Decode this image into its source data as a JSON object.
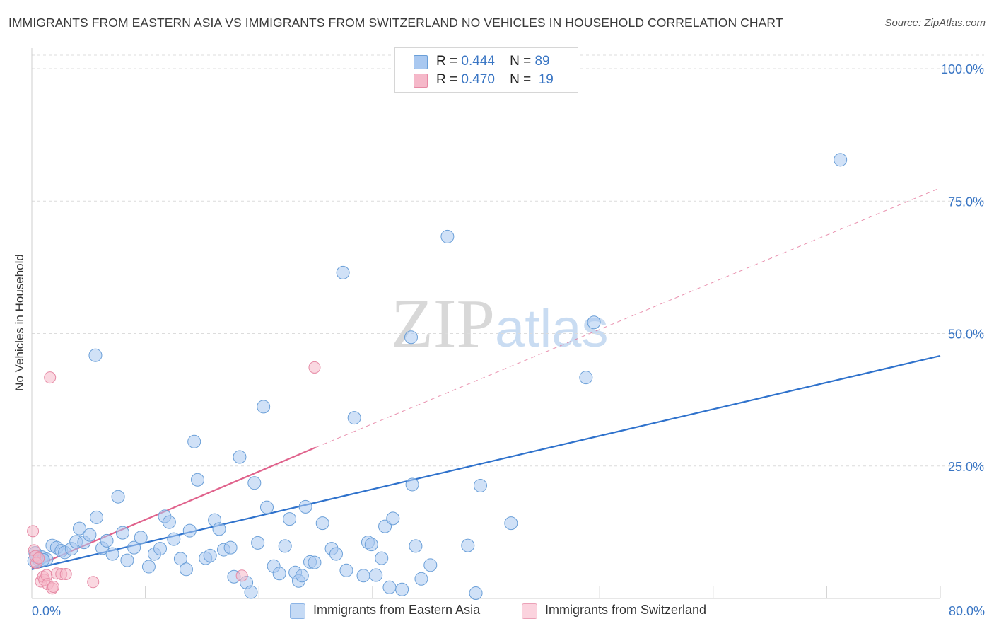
{
  "title": "IMMIGRANTS FROM EASTERN ASIA VS IMMIGRANTS FROM SWITZERLAND NO VEHICLES IN HOUSEHOLD CORRELATION CHART",
  "source": "Source: ZipAtlas.com",
  "watermark": {
    "zip": "ZIP",
    "atlas": "atlas"
  },
  "legend": [
    {
      "r_label": "R =",
      "r_value": "0.444",
      "n_label": "N =",
      "n_value": "89",
      "color": "#a9c8f0"
    },
    {
      "r_label": "R =",
      "r_value": "0.470",
      "n_label": "N =",
      "n_value": "19",
      "color": "#f5b8c9"
    }
  ],
  "colors": {
    "blue_fill": "#a9c8f0",
    "blue_stroke": "#6a9fd8",
    "blue_line": "#2f72cc",
    "pink_fill": "#f5b8c9",
    "pink_stroke": "#e68aa5",
    "pink_line": "#e0628c",
    "axis_text": "#3a76c4"
  },
  "chart_data": {
    "type": "scatter",
    "title": "IMMIGRANTS FROM EASTERN ASIA VS IMMIGRANTS FROM SWITZERLAND NO VEHICLES IN HOUSEHOLD CORRELATION CHART",
    "xlabel": "",
    "ylabel": "No Vehicles in Household",
    "xlim": [
      0,
      80
    ],
    "ylim": [
      0,
      100
    ],
    "x_tick_labels": [
      "0.0%",
      "80.0%"
    ],
    "y_tick_labels": [
      "100.0%",
      "75.0%",
      "50.0%",
      "25.0%"
    ],
    "y_ticks": [
      100,
      75,
      50,
      25
    ],
    "grid": true,
    "legend_position": "top-center",
    "series": [
      {
        "name": "Immigrants from Eastern Asia",
        "color": "#a9c8f0",
        "r": 0.444,
        "n": 89,
        "trend": {
          "x": [
            0,
            80
          ],
          "y": [
            5.5,
            45.8
          ],
          "style": "solid"
        },
        "points": [
          [
            0.3,
            8.6
          ],
          [
            0.6,
            7.3
          ],
          [
            0.9,
            7.8
          ],
          [
            1.3,
            7.4
          ],
          [
            1.8,
            10.0
          ],
          [
            2.2,
            9.6
          ],
          [
            2.6,
            9.0
          ],
          [
            2.9,
            8.7
          ],
          [
            3.5,
            9.4
          ],
          [
            3.9,
            10.7
          ],
          [
            4.2,
            13.2
          ],
          [
            4.6,
            10.6
          ],
          [
            5.1,
            12.0
          ],
          [
            5.7,
            15.3
          ],
          [
            6.2,
            9.5
          ],
          [
            6.6,
            10.9
          ],
          [
            7.1,
            8.4
          ],
          [
            7.6,
            19.2
          ],
          [
            8.0,
            12.4
          ],
          [
            8.4,
            7.2
          ],
          [
            9.0,
            9.6
          ],
          [
            9.6,
            11.5
          ],
          [
            10.3,
            6.0
          ],
          [
            10.8,
            8.4
          ],
          [
            11.3,
            9.4
          ],
          [
            11.7,
            15.5
          ],
          [
            12.1,
            14.4
          ],
          [
            12.5,
            11.2
          ],
          [
            13.1,
            7.5
          ],
          [
            13.6,
            5.5
          ],
          [
            13.9,
            12.8
          ],
          [
            14.3,
            29.6
          ],
          [
            14.6,
            22.4
          ],
          [
            15.3,
            7.6
          ],
          [
            15.7,
            8.1
          ],
          [
            16.1,
            14.8
          ],
          [
            16.5,
            13.1
          ],
          [
            16.9,
            9.2
          ],
          [
            17.5,
            9.6
          ],
          [
            17.8,
            4.1
          ],
          [
            18.3,
            26.7
          ],
          [
            18.9,
            3.0
          ],
          [
            19.3,
            1.2
          ],
          [
            19.6,
            21.8
          ],
          [
            19.9,
            10.5
          ],
          [
            20.4,
            36.2
          ],
          [
            20.7,
            17.2
          ],
          [
            21.3,
            6.1
          ],
          [
            21.8,
            4.7
          ],
          [
            22.3,
            9.9
          ],
          [
            22.7,
            15.0
          ],
          [
            23.2,
            4.9
          ],
          [
            23.5,
            3.3
          ],
          [
            23.8,
            4.3
          ],
          [
            24.1,
            17.3
          ],
          [
            24.5,
            6.9
          ],
          [
            24.9,
            6.8
          ],
          [
            25.6,
            14.2
          ],
          [
            26.4,
            9.4
          ],
          [
            26.8,
            8.4
          ],
          [
            27.4,
            61.5
          ],
          [
            27.7,
            5.3
          ],
          [
            28.4,
            34.1
          ],
          [
            29.2,
            4.3
          ],
          [
            29.6,
            10.6
          ],
          [
            29.9,
            10.2
          ],
          [
            30.3,
            4.4
          ],
          [
            30.8,
            7.6
          ],
          [
            31.1,
            13.6
          ],
          [
            31.5,
            2.1
          ],
          [
            31.8,
            15.1
          ],
          [
            32.6,
            1.7
          ],
          [
            33.4,
            49.3
          ],
          [
            33.5,
            21.5
          ],
          [
            33.8,
            9.9
          ],
          [
            34.3,
            3.7
          ],
          [
            35.1,
            6.3
          ],
          [
            36.6,
            68.3
          ],
          [
            38.4,
            10.0
          ],
          [
            39.1,
            1.0
          ],
          [
            39.5,
            21.3
          ],
          [
            42.2,
            14.2
          ],
          [
            49.5,
            52.1
          ],
          [
            48.8,
            41.7
          ],
          [
            71.2,
            82.8
          ],
          [
            5.6,
            45.9
          ],
          [
            0.2,
            7.1
          ],
          [
            0.4,
            7.9
          ],
          [
            1.0,
            7.3
          ]
        ]
      },
      {
        "name": "Immigrants from Switzerland",
        "color": "#f5b8c9",
        "r": 0.47,
        "n": 19,
        "trend": {
          "x": [
            0,
            25
          ],
          "y": [
            5.8,
            28.5
          ],
          "style": "solid",
          "extended": {
            "x": [
              25,
              80
            ],
            "y": [
              28.5,
              77.5
            ],
            "style": "dashed"
          }
        },
        "points": [
          [
            0.1,
            12.7
          ],
          [
            0.2,
            9.1
          ],
          [
            0.3,
            8.0
          ],
          [
            0.4,
            6.7
          ],
          [
            0.6,
            7.6
          ],
          [
            0.8,
            3.2
          ],
          [
            1.0,
            4.1
          ],
          [
            1.1,
            3.5
          ],
          [
            1.3,
            4.4
          ],
          [
            1.4,
            2.7
          ],
          [
            1.6,
            41.7
          ],
          [
            1.8,
            1.9
          ],
          [
            1.9,
            2.2
          ],
          [
            2.2,
            4.7
          ],
          [
            2.6,
            4.6
          ],
          [
            3.0,
            4.6
          ],
          [
            5.4,
            3.1
          ],
          [
            18.5,
            4.3
          ],
          [
            24.9,
            43.6
          ]
        ]
      }
    ]
  }
}
